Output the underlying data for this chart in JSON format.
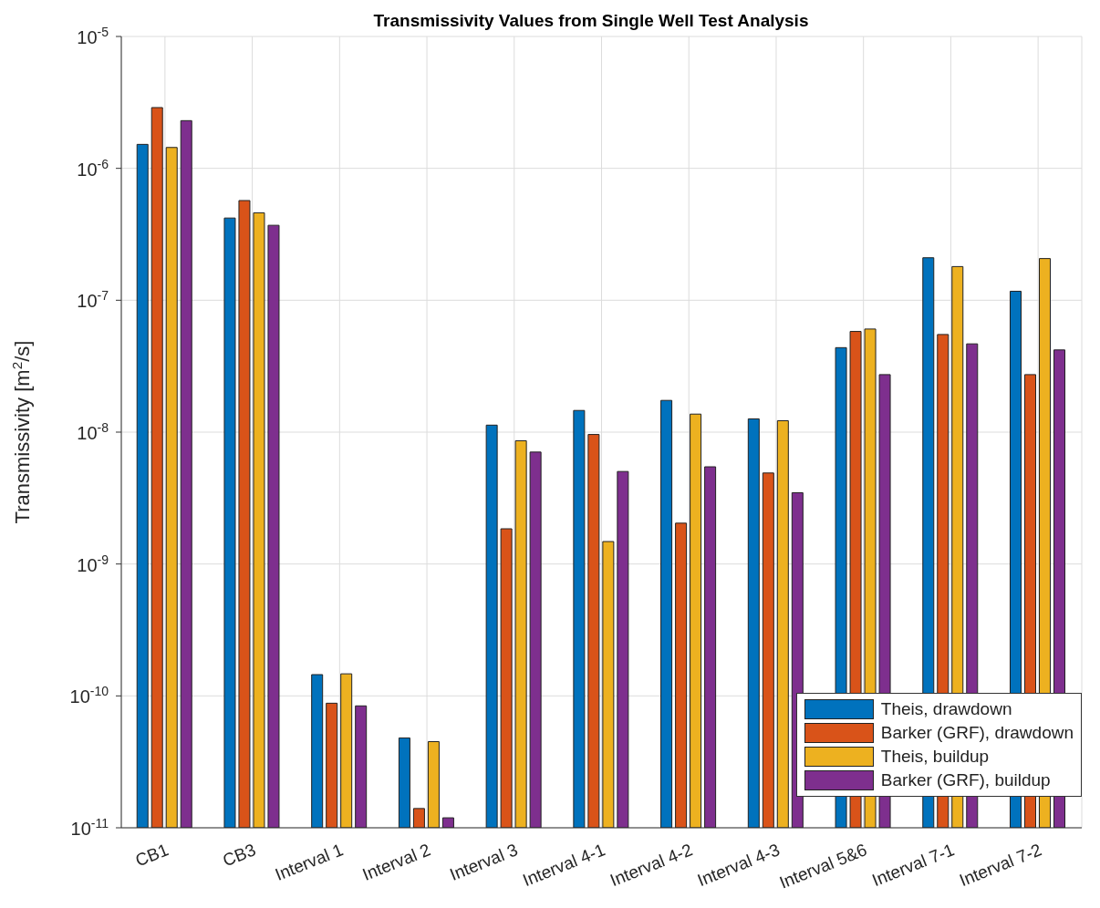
{
  "chart_data": {
    "type": "bar",
    "title": "Transmissivity Values from Single Well Test Analysis",
    "ylabel": "Transmissivity [m$^{2}$/s]",
    "categories": [
      "CB1",
      "CB3",
      "Interval 1",
      "Interval 2",
      "Interval 3",
      "Interval 4-1",
      "Interval 4-2",
      "Interval 4-3",
      "Interval 5&6",
      "Interval 7-1",
      "Interval 7-2"
    ],
    "series": [
      {
        "name": "Theis, drawdown",
        "color": "#0072bd",
        "values": [
          1.52e-06,
          4.2e-07,
          1.45e-10,
          4.8e-11,
          1.13e-08,
          1.46e-08,
          1.74e-08,
          1.26e-08,
          4.37e-08,
          2.1e-07,
          1.17e-07
        ]
      },
      {
        "name": "Barker (GRF), drawdown",
        "color": "#d95319",
        "values": [
          2.89e-06,
          5.7e-07,
          8.8e-11,
          1.4e-11,
          1.85e-09,
          9.6e-09,
          2.04e-09,
          4.9e-09,
          5.8e-08,
          5.5e-08,
          2.73e-08
        ]
      },
      {
        "name": "Theis, buildup",
        "color": "#edb120",
        "values": [
          1.44e-06,
          4.6e-07,
          1.47e-10,
          4.5e-11,
          8.6e-09,
          1.48e-09,
          1.37e-08,
          1.22e-08,
          6.05e-08,
          1.8e-07,
          2.07e-07
        ]
      },
      {
        "name": "Barker (GRF), buildup",
        "color": "#7e2f8e",
        "values": [
          2.3e-06,
          3.7e-07,
          8.4e-11,
          1.19e-11,
          7.06e-09,
          5.03e-09,
          5.46e-09,
          3.47e-09,
          2.73e-08,
          4.67e-08,
          4.2e-08
        ]
      }
    ],
    "log": "y",
    "ylim": [
      1e-11,
      1e-05
    ],
    "yticks": [
      {
        "value": 1e-11,
        "label": "10$^{-11}$"
      },
      {
        "value": 1e-10,
        "label": "10$^{-10}$"
      },
      {
        "value": 1e-09,
        "label": "10$^{-9}$"
      },
      {
        "value": 1e-08,
        "label": "10$^{-8}$"
      },
      {
        "value": 1e-07,
        "label": "10$^{-7}$"
      },
      {
        "value": 1e-06,
        "label": "10$^{-6}$"
      },
      {
        "value": 1e-05,
        "label": "10$^{-5}$"
      }
    ],
    "grid": true,
    "legend": "bottom right"
  }
}
